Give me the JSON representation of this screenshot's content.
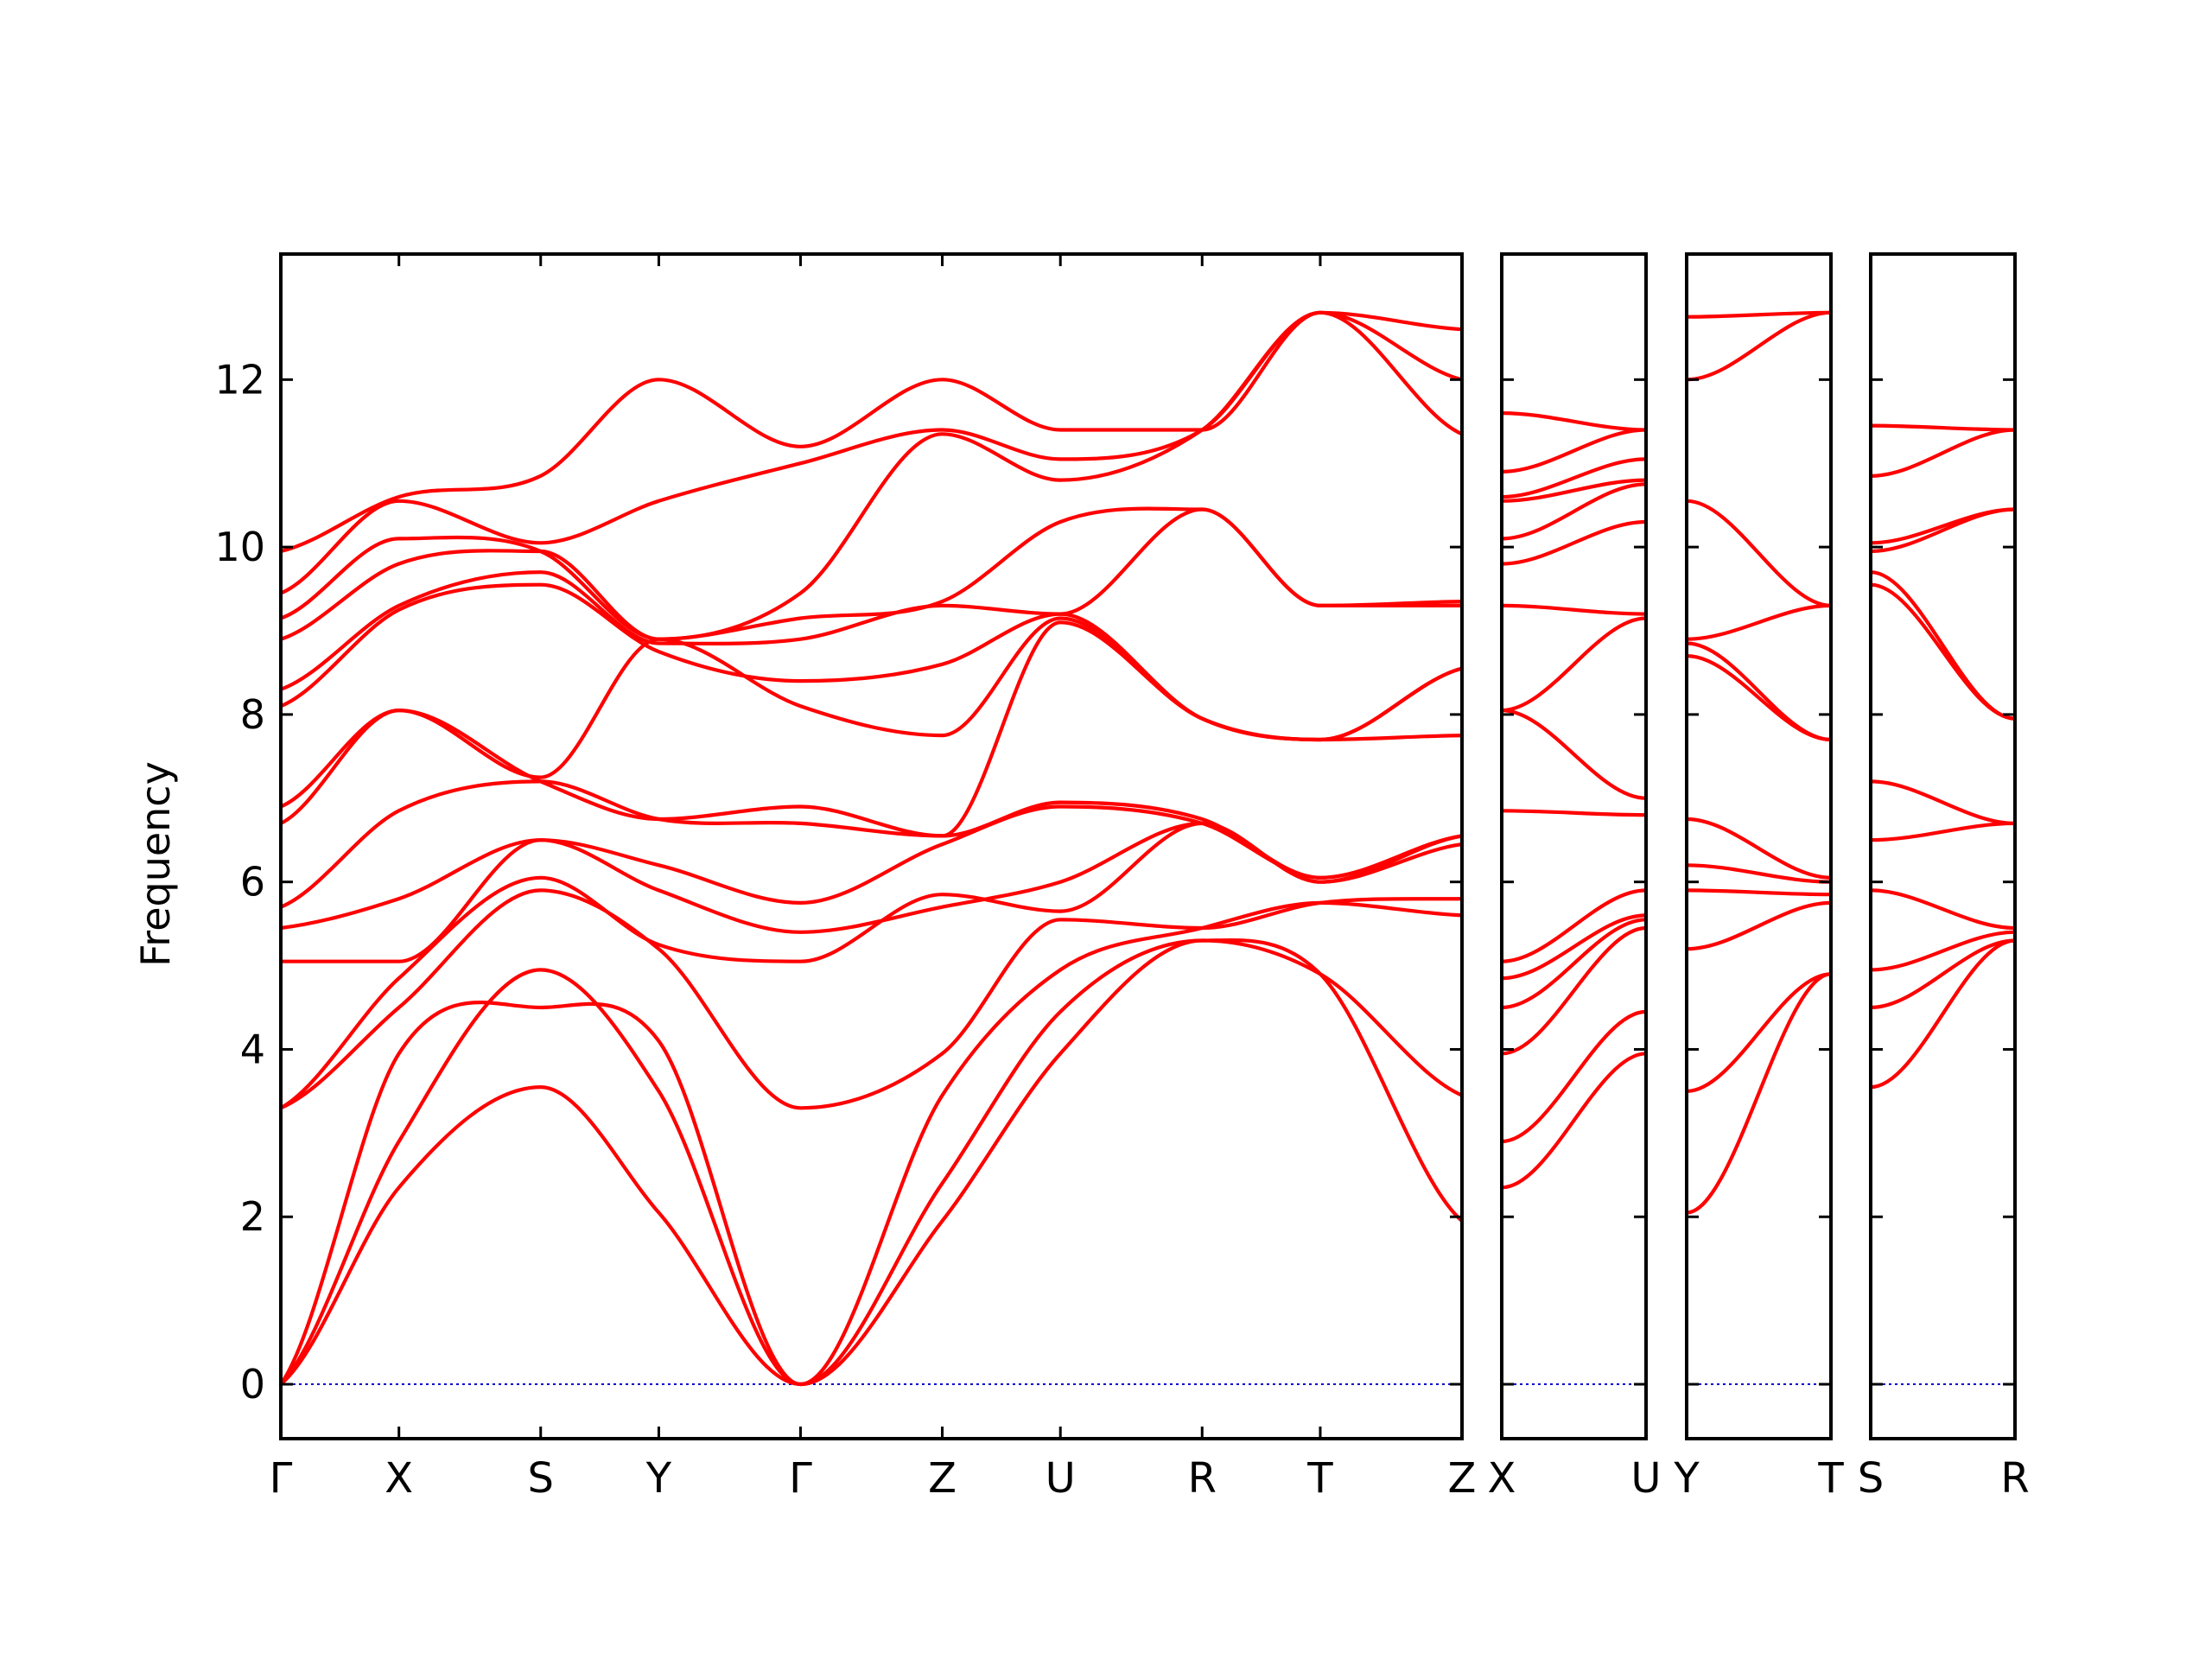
{
  "chart_data": {
    "type": "line",
    "title": "",
    "ylabel": "Frequency",
    "ylim": [
      -0.65,
      13.5
    ],
    "yticks": [
      0,
      2,
      4,
      6,
      8,
      10,
      12
    ],
    "grid": false,
    "line_color": "#ff0000",
    "zero_line_color": "#0000cc",
    "panels": [
      {
        "labels": [
          "Γ",
          "X",
          "S",
          "Y",
          "Γ",
          "Z",
          "U",
          "R",
          "T",
          "Z"
        ],
        "positions": [
          0,
          1,
          2.2,
          3.2,
          4.4,
          5.6,
          6.6,
          7.8,
          8.8,
          10.0
        ],
        "series": [
          {
            "x": [
              0,
              1,
              2.2,
              3.2,
              4.4,
              5.6,
              6.6,
              7.8,
              8.8,
              10.0
            ],
            "y": [
              0,
              2.35,
              3.55,
              2.05,
              0,
              1.95,
              3.95,
              5.3,
              4.9,
              1.95
            ]
          },
          {
            "x": [
              0,
              1,
              2.2,
              3.2,
              4.4,
              5.6,
              6.6,
              7.8,
              8.8,
              10.0
            ],
            "y": [
              0,
              2.9,
              4.95,
              3.5,
              0,
              2.4,
              4.45,
              5.3,
              4.9,
              3.45
            ]
          },
          {
            "x": [
              0,
              1,
              2.2,
              3.2,
              4.4,
              5.6,
              6.6,
              7.8,
              8.8,
              10.0
            ],
            "y": [
              0,
              3.95,
              4.5,
              4.1,
              0,
              3.45,
              4.95,
              5.45,
              5.75,
              5.6
            ]
          },
          {
            "x": [
              0,
              1,
              2.2,
              3.2,
              4.4,
              5.6,
              6.6,
              7.8,
              8.8,
              10.0
            ],
            "y": [
              3.3,
              4.5,
              5.9,
              5.2,
              3.3,
              3.95,
              5.55,
              5.45,
              5.75,
              5.8
            ]
          },
          {
            "x": [
              0,
              1,
              2.2,
              3.2,
              4.4,
              5.6,
              6.6,
              7.8,
              8.8,
              10.0
            ],
            "y": [
              3.3,
              4.85,
              6.05,
              5.25,
              5.05,
              5.85,
              5.65,
              6.7,
              6.0,
              6.45
            ]
          },
          {
            "x": [
              0,
              1,
              2.2,
              3.2,
              4.4,
              5.6,
              6.6,
              7.8,
              8.8,
              10.0
            ],
            "y": [
              5.05,
              5.05,
              6.5,
              5.9,
              5.4,
              5.7,
              6.0,
              6.7,
              6.0,
              6.55
            ]
          },
          {
            "x": [
              0,
              1,
              2.2,
              3.2,
              4.4,
              5.6,
              6.6,
              7.8,
              8.8,
              10.0
            ],
            "y": [
              5.45,
              5.8,
              6.5,
              6.2,
              5.75,
              6.45,
              6.9,
              6.7,
              6.05,
              6.55
            ]
          },
          {
            "x": [
              0,
              1,
              2.2,
              3.2,
              4.4,
              5.6,
              6.6,
              7.8,
              8.8,
              10.0
            ],
            "y": [
              5.7,
              6.85,
              7.2,
              6.75,
              6.7,
              6.55,
              6.95,
              6.75,
              6.05,
              6.55
            ]
          },
          {
            "x": [
              0,
              1,
              2.2,
              3.2,
              4.4,
              5.6,
              6.6,
              7.8,
              8.8,
              10.0
            ],
            "y": [
              6.7,
              8.05,
              7.2,
              6.75,
              6.9,
              6.55,
              9.1,
              7.95,
              7.7,
              7.75
            ]
          },
          {
            "x": [
              0,
              1,
              2.2,
              3.2,
              4.4,
              5.6,
              6.6,
              7.8,
              8.8,
              10.0
            ],
            "y": [
              6.9,
              8.05,
              7.25,
              8.9,
              8.1,
              7.75,
              9.15,
              7.95,
              7.7,
              8.55
            ]
          },
          {
            "x": [
              0,
              1,
              2.2,
              3.2,
              4.4,
              5.6,
              6.6,
              7.8,
              8.8,
              10.0
            ],
            "y": [
              8.1,
              9.25,
              9.55,
              8.75,
              8.4,
              8.6,
              9.2,
              7.95,
              7.7,
              8.55
            ]
          },
          {
            "x": [
              0,
              1,
              2.2,
              3.2,
              4.4,
              5.6,
              6.6,
              7.8,
              8.8,
              10.0
            ],
            "y": [
              8.3,
              9.3,
              9.7,
              8.85,
              8.9,
              9.3,
              9.2,
              10.45,
              9.3,
              9.3
            ]
          },
          {
            "x": [
              0,
              1,
              2.2,
              3.2,
              4.4,
              5.6,
              6.6,
              7.8,
              8.8,
              10.0
            ],
            "y": [
              8.9,
              9.8,
              9.95,
              8.9,
              9.15,
              9.35,
              10.3,
              10.45,
              9.3,
              9.35
            ]
          },
          {
            "x": [
              0,
              1,
              2.2,
              3.2,
              4.4,
              5.6,
              6.6,
              7.8,
              8.8,
              10.0
            ],
            "y": [
              9.15,
              10.1,
              9.95,
              8.9,
              9.45,
              11.35,
              10.8,
              11.4,
              12.8,
              11.35
            ]
          },
          {
            "x": [
              0,
              1,
              2.2,
              3.2,
              4.4,
              5.6,
              6.6,
              7.8,
              8.8,
              10.0
            ],
            "y": [
              9.45,
              10.55,
              10.05,
              10.55,
              11.0,
              11.4,
              11.05,
              11.4,
              12.8,
              12.0
            ]
          },
          {
            "x": [
              0,
              1,
              2.2,
              3.2,
              4.4,
              5.6,
              6.6,
              7.8,
              8.8,
              10.0
            ],
            "y": [
              9.95,
              10.6,
              10.85,
              12.0,
              11.2,
              12.0,
              11.4,
              11.4,
              12.8,
              12.6
            ]
          }
        ]
      },
      {
        "labels": [
          "X",
          "U"
        ],
        "positions": [
          0,
          1
        ],
        "series": [
          {
            "x": [
              0,
              1
            ],
            "y": [
              2.35,
              3.95
            ]
          },
          {
            "x": [
              0,
              1
            ],
            "y": [
              2.9,
              4.45
            ]
          },
          {
            "x": [
              0,
              1
            ],
            "y": [
              3.95,
              5.45
            ]
          },
          {
            "x": [
              0,
              1
            ],
            "y": [
              4.5,
              5.55
            ]
          },
          {
            "x": [
              0,
              1
            ],
            "y": [
              4.85,
              5.6
            ]
          },
          {
            "x": [
              0,
              1
            ],
            "y": [
              5.05,
              5.9
            ]
          },
          {
            "x": [
              0,
              1
            ],
            "y": [
              6.85,
              6.8
            ]
          },
          {
            "x": [
              0,
              1
            ],
            "y": [
              8.05,
              7.0
            ]
          },
          {
            "x": [
              0,
              1
            ],
            "y": [
              8.05,
              9.15
            ]
          },
          {
            "x": [
              0,
              1
            ],
            "y": [
              9.3,
              9.2
            ]
          },
          {
            "x": [
              0,
              1
            ],
            "y": [
              9.8,
              10.3
            ]
          },
          {
            "x": [
              0,
              1
            ],
            "y": [
              10.1,
              10.75
            ]
          },
          {
            "x": [
              0,
              1
            ],
            "y": [
              10.55,
              10.8
            ]
          },
          {
            "x": [
              0,
              1
            ],
            "y": [
              10.6,
              11.05
            ]
          },
          {
            "x": [
              0,
              1
            ],
            "y": [
              10.9,
              11.4
            ]
          },
          {
            "x": [
              0,
              1
            ],
            "y": [
              11.6,
              11.4
            ]
          }
        ]
      },
      {
        "labels": [
          "Y",
          "T"
        ],
        "positions": [
          0,
          1
        ],
        "series": [
          {
            "x": [
              0,
              1
            ],
            "y": [
              2.05,
              4.9
            ]
          },
          {
            "x": [
              0,
              1
            ],
            "y": [
              3.5,
              4.9
            ]
          },
          {
            "x": [
              0,
              1
            ],
            "y": [
              5.2,
              5.75
            ]
          },
          {
            "x": [
              0,
              1
            ],
            "y": [
              5.9,
              5.85
            ]
          },
          {
            "x": [
              0,
              1
            ],
            "y": [
              6.2,
              6.0
            ]
          },
          {
            "x": [
              0,
              1
            ],
            "y": [
              6.75,
              6.05
            ]
          },
          {
            "x": [
              0,
              1
            ],
            "y": [
              8.7,
              7.7
            ]
          },
          {
            "x": [
              0,
              1
            ],
            "y": [
              8.85,
              7.7
            ]
          },
          {
            "x": [
              0,
              1
            ],
            "y": [
              8.9,
              9.3
            ]
          },
          {
            "x": [
              0,
              1
            ],
            "y": [
              10.55,
              9.3
            ]
          },
          {
            "x": [
              0,
              1
            ],
            "y": [
              12.0,
              12.8
            ]
          },
          {
            "x": [
              0,
              1
            ],
            "y": [
              12.75,
              12.8
            ]
          }
        ]
      },
      {
        "labels": [
          "S",
          "R"
        ],
        "positions": [
          0,
          1
        ],
        "series": [
          {
            "x": [
              0,
              1
            ],
            "y": [
              3.55,
              5.3
            ]
          },
          {
            "x": [
              0,
              1
            ],
            "y": [
              4.5,
              5.3
            ]
          },
          {
            "x": [
              0,
              1
            ],
            "y": [
              4.95,
              5.4
            ]
          },
          {
            "x": [
              0,
              1
            ],
            "y": [
              5.9,
              5.45
            ]
          },
          {
            "x": [
              0,
              1
            ],
            "y": [
              6.5,
              6.7
            ]
          },
          {
            "x": [
              0,
              1
            ],
            "y": [
              7.2,
              6.7
            ]
          },
          {
            "x": [
              0,
              1
            ],
            "y": [
              9.55,
              7.95
            ]
          },
          {
            "x": [
              0,
              1
            ],
            "y": [
              9.7,
              7.95
            ]
          },
          {
            "x": [
              0,
              1
            ],
            "y": [
              9.95,
              10.45
            ]
          },
          {
            "x": [
              0,
              1
            ],
            "y": [
              10.05,
              10.45
            ]
          },
          {
            "x": [
              0,
              1
            ],
            "y": [
              10.85,
              11.4
            ]
          },
          {
            "x": [
              0,
              1
            ],
            "y": [
              11.45,
              11.4
            ]
          }
        ]
      }
    ]
  }
}
